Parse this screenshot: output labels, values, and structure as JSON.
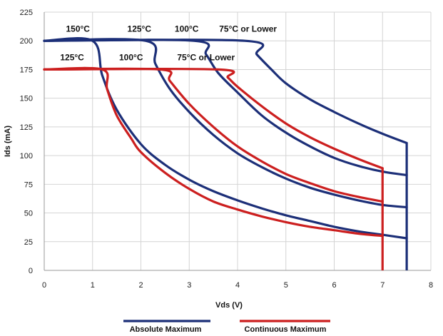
{
  "chart_data": {
    "type": "line",
    "xlabel": "Vds (V)",
    "ylabel": "Ids (mA)",
    "xlim": [
      0,
      8
    ],
    "ylim": [
      0,
      225
    ],
    "x_ticks": [
      "0",
      "1",
      "2",
      "3",
      "4",
      "5",
      "6",
      "7",
      "8"
    ],
    "y_ticks": [
      "0",
      "25",
      "50",
      "75",
      "100",
      "125",
      "150",
      "175",
      "200",
      "225"
    ],
    "grid": true,
    "legend": "bottom",
    "colors": {
      "absolute": "#1c2f78",
      "continuous": "#cc1f1f"
    },
    "series": [
      {
        "name": "Absolute Maximum",
        "label": "150°C",
        "group": "absolute",
        "points": [
          [
            0,
            200
          ],
          [
            1.0,
            200
          ],
          [
            1.2,
            170
          ],
          [
            1.5,
            140
          ],
          [
            2,
            110
          ],
          [
            2.5,
            92
          ],
          [
            3,
            79
          ],
          [
            3.5,
            69
          ],
          [
            4,
            61
          ],
          [
            4.5,
            54
          ],
          [
            5,
            48
          ],
          [
            5.5,
            43
          ],
          [
            6,
            38
          ],
          [
            6.5,
            34
          ],
          [
            7,
            31
          ],
          [
            7.5,
            28
          ]
        ]
      },
      {
        "name": "Absolute Maximum",
        "label": "125°C",
        "group": "absolute",
        "points": [
          [
            0,
            200
          ],
          [
            2.1,
            200
          ],
          [
            2.3,
            180
          ],
          [
            2.6,
            158
          ],
          [
            3,
            138
          ],
          [
            3.5,
            118
          ],
          [
            4,
            102
          ],
          [
            4.5,
            90
          ],
          [
            5,
            80
          ],
          [
            5.5,
            72
          ],
          [
            6,
            66
          ],
          [
            6.5,
            61
          ],
          [
            7,
            57
          ],
          [
            7.5,
            55
          ]
        ]
      },
      {
        "name": "Absolute Maximum",
        "label": "100°C",
        "group": "absolute",
        "points": [
          [
            0,
            200
          ],
          [
            3.1,
            200
          ],
          [
            3.35,
            188
          ],
          [
            3.6,
            172
          ],
          [
            4,
            155
          ],
          [
            4.5,
            135
          ],
          [
            5,
            120
          ],
          [
            5.5,
            108
          ],
          [
            6,
            98
          ],
          [
            6.5,
            91
          ],
          [
            7,
            86
          ],
          [
            7.5,
            83
          ]
        ]
      },
      {
        "name": "Absolute Maximum",
        "label": "75°C or Lower",
        "group": "absolute",
        "points": [
          [
            0,
            200
          ],
          [
            4.15,
            200
          ],
          [
            4.4,
            188
          ],
          [
            4.7,
            175
          ],
          [
            5,
            163
          ],
          [
            5.5,
            149
          ],
          [
            6,
            138
          ],
          [
            6.5,
            128
          ],
          [
            7,
            119
          ],
          [
            7.5,
            111
          ]
        ]
      },
      {
        "name": "Continuous Maximum",
        "label": "125°C",
        "group": "continuous",
        "points": [
          [
            0,
            175
          ],
          [
            1.2,
            175
          ],
          [
            1.3,
            158
          ],
          [
            1.5,
            135
          ],
          [
            1.8,
            115
          ],
          [
            2,
            103
          ],
          [
            2.5,
            85
          ],
          [
            3,
            71
          ],
          [
            3.5,
            60
          ],
          [
            4,
            53
          ],
          [
            4.5,
            47
          ],
          [
            5,
            42
          ],
          [
            5.5,
            38
          ],
          [
            6,
            35
          ],
          [
            6.5,
            32
          ],
          [
            7,
            30
          ]
        ]
      },
      {
        "name": "Continuous Maximum",
        "label": "100°C",
        "group": "continuous",
        "points": [
          [
            0,
            175
          ],
          [
            2.4,
            175
          ],
          [
            2.6,
            165
          ],
          [
            3,
            145
          ],
          [
            3.5,
            125
          ],
          [
            4,
            108
          ],
          [
            4.5,
            95
          ],
          [
            5,
            84
          ],
          [
            5.5,
            76
          ],
          [
            6,
            69
          ],
          [
            6.5,
            64
          ],
          [
            7,
            60
          ]
        ]
      },
      {
        "name": "Continuous Maximum",
        "label": "75°C or Lower",
        "group": "continuous",
        "points": [
          [
            0,
            175
          ],
          [
            3.6,
            175
          ],
          [
            3.8,
            168
          ],
          [
            4,
            160
          ],
          [
            4.5,
            143
          ],
          [
            5,
            128
          ],
          [
            5.5,
            116
          ],
          [
            6,
            106
          ],
          [
            6.5,
            97
          ],
          [
            7,
            89
          ]
        ]
      }
    ],
    "verticals": [
      {
        "group": "absolute",
        "x": 7.5,
        "y": [
          0,
          111
        ]
      },
      {
        "group": "continuous",
        "x": 7.0,
        "y": [
          0,
          89
        ]
      }
    ],
    "annotations": [
      {
        "text": "150°C",
        "x": 0.45,
        "y": 208
      },
      {
        "text": "125°C",
        "x": 1.72,
        "y": 208
      },
      {
        "text": "100°C",
        "x": 2.7,
        "y": 208
      },
      {
        "text": "75°C or Lower",
        "x": 3.62,
        "y": 208
      },
      {
        "text": "125°C",
        "x": 0.33,
        "y": 183
      },
      {
        "text": "100°C",
        "x": 1.55,
        "y": 183
      },
      {
        "text": "75°C or Lower",
        "x": 2.75,
        "y": 183
      }
    ],
    "legend_entries": [
      {
        "label": "Absolute Maximum",
        "group": "absolute"
      },
      {
        "label": "Continuous Maximum",
        "group": "continuous"
      }
    ]
  }
}
